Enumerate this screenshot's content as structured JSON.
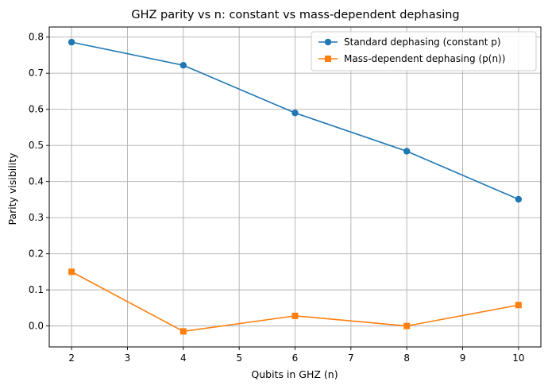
{
  "chart_data": {
    "type": "line",
    "title": "GHZ parity vs n: constant vs mass-dependent dephasing",
    "xlabel": "Qubits in GHZ (n)",
    "ylabel": "Parity visibility",
    "xlim": [
      1.6,
      10.4
    ],
    "ylim": [
      -0.058,
      0.828
    ],
    "xticks": [
      2,
      3,
      4,
      5,
      6,
      7,
      8,
      9,
      10
    ],
    "yticks": [
      0.0,
      0.1,
      0.2,
      0.3,
      0.4,
      0.5,
      0.6,
      0.7,
      0.8
    ],
    "ytick_labels": [
      "0.0",
      "0.1",
      "0.2",
      "0.3",
      "0.4",
      "0.5",
      "0.6",
      "0.7",
      "0.8"
    ],
    "grid": true,
    "legend_position": "top-right",
    "x": [
      2,
      4,
      6,
      8,
      10
    ],
    "series": [
      {
        "name": "Standard dephasing (constant p)",
        "values": [
          0.786,
          0.722,
          0.59,
          0.484,
          0.351
        ],
        "color": "#1f77b4",
        "marker": "circle"
      },
      {
        "name": "Mass-dependent dephasing (p(n))",
        "values": [
          0.15,
          -0.015,
          0.028,
          0.0,
          0.058
        ],
        "color": "#ff7f0e",
        "marker": "square"
      }
    ]
  }
}
